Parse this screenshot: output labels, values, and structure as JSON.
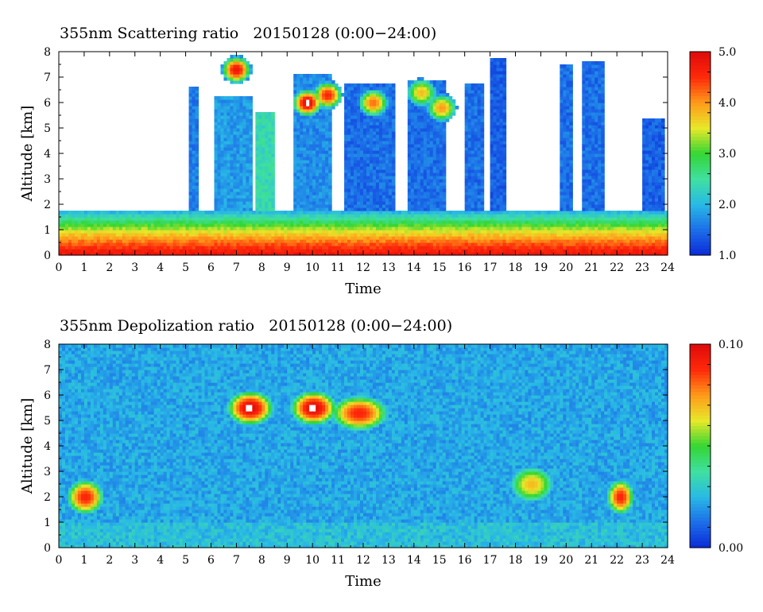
{
  "colors": {
    "colormap": [
      "#0a2bd8",
      "#1c6ee8",
      "#29b9e6",
      "#3fe0a0",
      "#34d634",
      "#e8e82a",
      "#ff9a1a",
      "#ff2a0a",
      "#e00a0a"
    ],
    "saturated": "#ffffff",
    "axis": "#000000"
  },
  "chart_data": [
    {
      "type": "heatmap",
      "title": "355nm Scattering ratio   20150128 (0:00−24:00)",
      "xlabel": "Time",
      "ylabel": "Altitude [km]",
      "xlim": [
        0,
        24
      ],
      "ylim": [
        0,
        8
      ],
      "x_ticks": [
        "0",
        "1",
        "2",
        "3",
        "4",
        "5",
        "6",
        "7",
        "8",
        "9",
        "10",
        "11",
        "12",
        "13",
        "14",
        "15",
        "16",
        "17",
        "18",
        "19",
        "20",
        "21",
        "22",
        "23",
        "24"
      ],
      "y_ticks": [
        "0",
        "1",
        "2",
        "3",
        "4",
        "5",
        "6",
        "7",
        "8"
      ],
      "colorbar": {
        "min": 1.0,
        "max": 5.0,
        "tick_labels": [
          "1.0",
          "2.0",
          "3.0",
          "4.0",
          "5.0"
        ],
        "tick_values": [
          1.0,
          2.0,
          3.0,
          4.0,
          5.0
        ]
      },
      "features": {
        "boundary_layer_top_km": 1.8,
        "near_surface_value": 4.8,
        "cloud_columns": [
          {
            "t0": 5.1,
            "t1": 5.5,
            "top": 6.6,
            "v": 1.6
          },
          {
            "t0": 6.1,
            "t1": 7.6,
            "top": 6.2,
            "v": 1.8
          },
          {
            "t0": 7.7,
            "t1": 8.5,
            "top": 5.6,
            "v": 2.4
          },
          {
            "t0": 9.3,
            "t1": 10.8,
            "top": 7.1,
            "v": 1.7
          },
          {
            "t0": 11.2,
            "t1": 13.3,
            "top": 6.7,
            "v": 1.5
          },
          {
            "t0": 13.8,
            "t1": 15.3,
            "top": 6.9,
            "v": 1.5
          },
          {
            "t0": 16.0,
            "t1": 16.8,
            "top": 6.8,
            "v": 1.5
          },
          {
            "t0": 17.0,
            "t1": 17.6,
            "top": 7.8,
            "v": 1.4
          },
          {
            "t0": 19.8,
            "t1": 20.2,
            "top": 7.5,
            "v": 1.5
          },
          {
            "t0": 20.6,
            "t1": 21.5,
            "top": 7.6,
            "v": 1.5
          },
          {
            "t0": 23.0,
            "t1": 23.9,
            "top": 5.4,
            "v": 1.4
          }
        ],
        "cloud_blobs": [
          {
            "t": 7.0,
            "z": 7.3,
            "v": 4.8
          },
          {
            "t": 9.8,
            "z": 6.0,
            "v": 5.0
          },
          {
            "t": 10.6,
            "z": 6.3,
            "v": 4.6
          },
          {
            "t": 12.4,
            "z": 6.0,
            "v": 4.2
          },
          {
            "t": 14.3,
            "z": 6.4,
            "v": 3.8
          },
          {
            "t": 15.1,
            "z": 5.8,
            "v": 4.0
          }
        ]
      }
    },
    {
      "type": "heatmap",
      "title": "355nm Depolization ratio   20150128 (0:00−24:00)",
      "xlabel": "Time",
      "ylabel": "Altitude [km]",
      "xlim": [
        0,
        24
      ],
      "ylim": [
        0,
        8
      ],
      "x_ticks": [
        "0",
        "1",
        "2",
        "3",
        "4",
        "5",
        "6",
        "7",
        "8",
        "9",
        "10",
        "11",
        "12",
        "13",
        "14",
        "15",
        "16",
        "17",
        "18",
        "19",
        "20",
        "21",
        "22",
        "23",
        "24"
      ],
      "y_ticks": [
        "0",
        "1",
        "2",
        "3",
        "4",
        "5",
        "6",
        "7",
        "8"
      ],
      "colorbar": {
        "min": 0.0,
        "max": 0.1,
        "tick_labels": [
          "0.00",
          "0.10"
        ],
        "tick_values": [
          0.0,
          0.1
        ]
      },
      "features": {
        "background_value": 0.022,
        "high_depol_regions": [
          {
            "t0": 6.8,
            "t1": 8.3,
            "z": 5.5,
            "v": 0.1
          },
          {
            "t0": 9.3,
            "t1": 10.8,
            "z": 5.5,
            "v": 0.1
          },
          {
            "t0": 10.9,
            "t1": 12.8,
            "z": 5.3,
            "v": 0.09
          },
          {
            "t0": 18.0,
            "t1": 19.3,
            "z": 2.5,
            "v": 0.07
          },
          {
            "t0": 0.5,
            "t1": 1.6,
            "z": 2.0,
            "v": 0.09
          },
          {
            "t0": 21.8,
            "t1": 22.5,
            "z": 2.0,
            "v": 0.09
          }
        ]
      }
    }
  ]
}
